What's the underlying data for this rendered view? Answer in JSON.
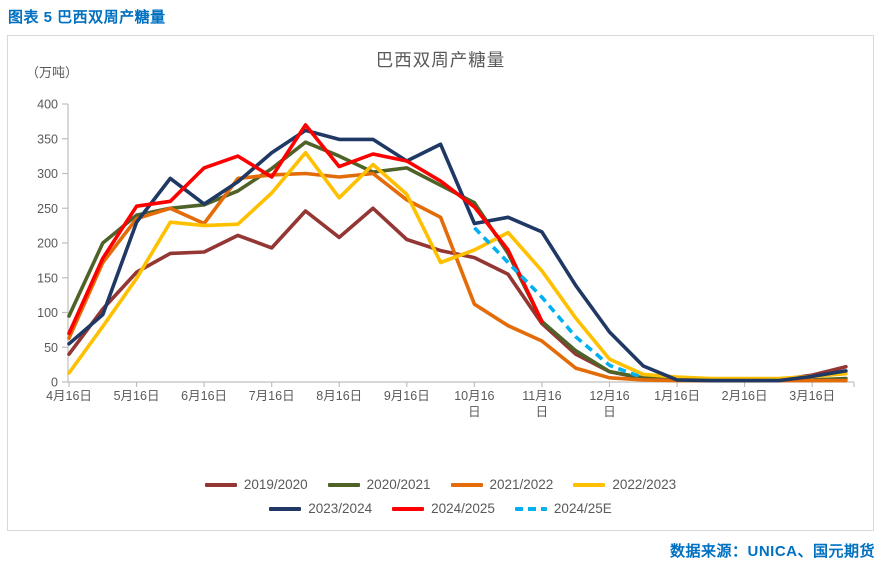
{
  "header": {
    "title": "图表 5 巴西双周产糖量"
  },
  "source": {
    "text": "数据来源：UNICA、国元期货"
  },
  "chart_data": {
    "type": "line",
    "title": "巴西双周产糖量",
    "unit_label": "（万吨）",
    "grid": false,
    "legend_position": "bottom",
    "ylim": [
      0,
      400
    ],
    "y_ticks": [
      0,
      50,
      100,
      150,
      200,
      250,
      300,
      350,
      400
    ],
    "x": [
      "4月16日",
      "5月1日",
      "5月16日",
      "6月1日",
      "6月16日",
      "7月1日",
      "7月16日",
      "8月1日",
      "8月16日",
      "9月1日",
      "9月16日",
      "10月1日",
      "10月16日",
      "11月1日",
      "11月16日",
      "12月1日",
      "12月16日",
      "1月1日",
      "1月16日",
      "2月1日",
      "2月16日",
      "3月1日",
      "3月16日",
      "3月31日"
    ],
    "x_tick_labels": [
      "4月16日",
      "5月16日",
      "6月16日",
      "7月16日",
      "8月16日",
      "9月16日",
      "10月16日",
      "11月16日",
      "12月16日",
      "1月16日",
      "2月16日",
      "3月16日"
    ],
    "series": [
      {
        "name": "2019/2020",
        "color": "#943634",
        "style": "solid",
        "values": [
          40,
          105,
          158,
          185,
          187,
          211,
          193,
          246,
          208,
          250,
          205,
          189,
          179,
          155,
          84,
          40,
          15,
          5,
          3,
          2,
          2,
          3,
          10,
          22
        ]
      },
      {
        "name": "2020/2021",
        "color": "#4F6228",
        "style": "solid",
        "values": [
          95,
          200,
          240,
          250,
          255,
          275,
          307,
          345,
          325,
          302,
          308,
          283,
          258,
          185,
          87,
          45,
          15,
          6,
          3,
          3,
          3,
          3,
          3,
          5
        ]
      },
      {
        "name": "2021/2022",
        "color": "#E36C09",
        "style": "solid",
        "values": [
          63,
          172,
          235,
          250,
          228,
          293,
          298,
          300,
          295,
          300,
          262,
          237,
          112,
          81,
          59,
          20,
          6,
          3,
          2,
          2,
          2,
          2,
          2,
          2
        ]
      },
      {
        "name": "2022/2023",
        "color": "#FFC000",
        "style": "solid",
        "values": [
          13,
          80,
          149,
          230,
          225,
          227,
          272,
          330,
          265,
          313,
          270,
          172,
          190,
          215,
          160,
          92,
          33,
          11,
          7,
          5,
          5,
          5,
          8,
          12
        ]
      },
      {
        "name": "2023/2024",
        "color": "#1F3864",
        "style": "solid",
        "values": [
          55,
          97,
          230,
          293,
          256,
          288,
          330,
          362,
          349,
          349,
          318,
          342,
          228,
          237,
          216,
          139,
          72,
          23,
          3,
          2,
          2,
          2,
          8,
          16
        ]
      },
      {
        "name": "2024/2025",
        "color": "#FF0000",
        "style": "solid",
        "values": [
          70,
          178,
          253,
          260,
          308,
          325,
          295,
          370,
          310,
          328,
          318,
          289,
          252,
          190,
          87,
          null,
          null,
          null,
          null,
          null,
          null,
          null,
          null,
          null
        ]
      },
      {
        "name": "2024/25E",
        "color": "#00B0F0",
        "style": "dashed",
        "values": [
          null,
          null,
          null,
          null,
          null,
          null,
          null,
          null,
          null,
          null,
          null,
          null,
          222,
          172,
          122,
          65,
          24,
          6,
          null,
          null,
          null,
          null,
          null,
          null
        ]
      }
    ]
  }
}
